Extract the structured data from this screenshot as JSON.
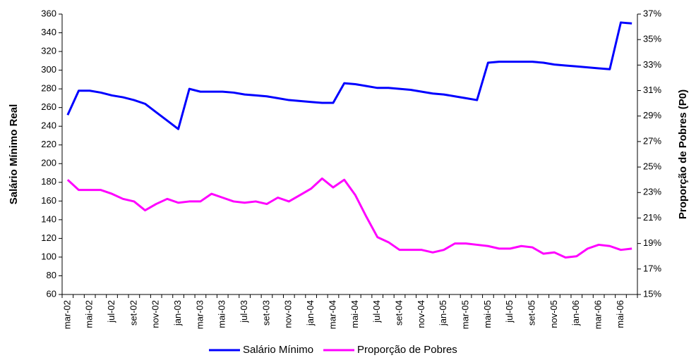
{
  "chart_data": {
    "type": "line",
    "categories": [
      "mar-02",
      null,
      "mai-02",
      null,
      "jul-02",
      null,
      "set-02",
      null,
      "nov-02",
      null,
      "jan-03",
      null,
      "mar-03",
      null,
      "mai-03",
      null,
      "jul-03",
      null,
      "set-03",
      null,
      "nov-03",
      null,
      "jan-04",
      null,
      "mar-04",
      null,
      "mai-04",
      null,
      "jul-04",
      null,
      "set-04",
      null,
      "nov-04",
      null,
      "jan-05",
      null,
      "mar-05",
      null,
      "mai-05",
      null,
      "jul-05",
      null,
      "set-05",
      null,
      "nov-05",
      null,
      "jan-06",
      null,
      "mar-06",
      null,
      "mai-06",
      null
    ],
    "ylabel": "Salário Mínimo Real",
    "y2label": "Proporção de Pobres (P0)",
    "ylim": [
      60,
      360
    ],
    "yticks": [
      60,
      80,
      100,
      120,
      140,
      160,
      180,
      200,
      220,
      240,
      260,
      280,
      300,
      320,
      340,
      360
    ],
    "y2lim": [
      15,
      37
    ],
    "y2ticks": [
      {
        "value": 15,
        "label": "15%"
      },
      {
        "value": 17,
        "label": "17%"
      },
      {
        "value": 19,
        "label": "19%"
      },
      {
        "value": 21,
        "label": "21%"
      },
      {
        "value": 23,
        "label": "23%"
      },
      {
        "value": 25,
        "label": "25%"
      },
      {
        "value": 27,
        "label": "27%"
      },
      {
        "value": 29,
        "label": "29%"
      },
      {
        "value": 31,
        "label": "31%"
      },
      {
        "value": 33,
        "label": "33%"
      },
      {
        "value": 35,
        "label": "35%"
      },
      {
        "value": 37,
        "label": "37%"
      }
    ],
    "legend": "bottom",
    "series": [
      {
        "name": "Salário Mínimo",
        "color": "#0000ff",
        "values": [
          252,
          278,
          278,
          276,
          273,
          271,
          268,
          264,
          255,
          246,
          237,
          280,
          277,
          277,
          277,
          276,
          274,
          273,
          272,
          270,
          268,
          267,
          266,
          265,
          265,
          286,
          285,
          283,
          281,
          281,
          280,
          279,
          277,
          275,
          274,
          272,
          270,
          268,
          308,
          309,
          309,
          309,
          309,
          308,
          306,
          305,
          304,
          303,
          302,
          301,
          351,
          350
        ]
      },
      {
        "name": "Proporção de Pobres",
        "color": "#ff00ff",
        "axis": "y2",
        "values": [
          24.0,
          23.2,
          23.2,
          23.2,
          22.9,
          22.5,
          22.3,
          21.6,
          22.1,
          22.5,
          22.2,
          22.3,
          22.3,
          22.9,
          22.6,
          22.3,
          22.2,
          22.3,
          22.1,
          22.6,
          22.3,
          22.8,
          23.3,
          24.1,
          23.4,
          24.0,
          22.8,
          21.1,
          19.5,
          19.1,
          18.5,
          18.5,
          18.5,
          18.3,
          18.5,
          19.0,
          19.0,
          18.9,
          18.8,
          18.6,
          18.6,
          18.8,
          18.7,
          18.2,
          18.3,
          17.9,
          18.0,
          18.6,
          18.9,
          18.8,
          18.5,
          18.6
        ]
      }
    ]
  }
}
